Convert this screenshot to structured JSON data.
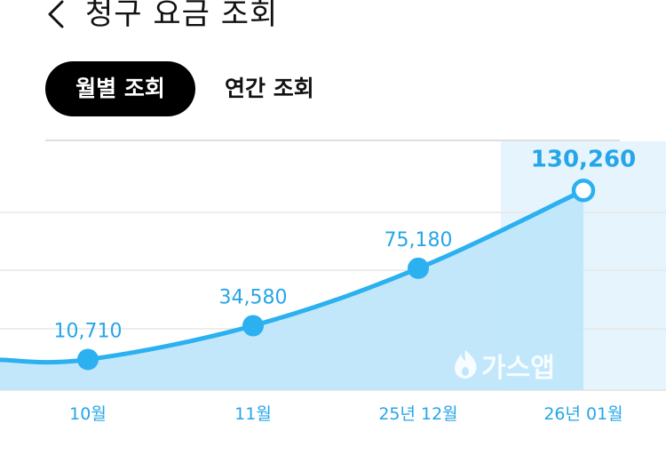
{
  "header": {
    "title": "청구 요금 조회",
    "back_icon": "chevron-left-icon"
  },
  "tabs": [
    {
      "label": "월별 조회",
      "active": true
    },
    {
      "label": "연간 조회",
      "active": false
    }
  ],
  "watermark": {
    "text": "가스앱",
    "icon": "flame-icon"
  },
  "colors": {
    "accent": "#2bb0f0",
    "fill": "#bfe6fa",
    "highlight": "#e6f5fd",
    "label": "#26a6e8",
    "active_tab_bg": "#000000"
  },
  "chart_data": {
    "type": "area",
    "categories": [
      "10월",
      "11월",
      "25년 12월",
      "26년 01월"
    ],
    "series": [
      {
        "values": [
          10710,
          34580,
          75180,
          130260
        ]
      }
    ],
    "data_labels": [
      "10,710",
      "34,580",
      "75,180",
      "130,260"
    ],
    "highlighted_category": "26년 01월",
    "ylim": [
      -11000,
      165000
    ],
    "grid": true
  }
}
